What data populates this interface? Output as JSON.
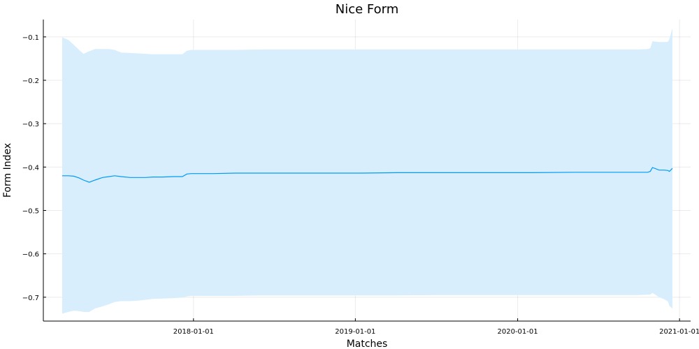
{
  "chart_data": {
    "type": "line",
    "title": "Nice Form",
    "xlabel": "Matches",
    "ylabel": "Form Index",
    "x_ticks": [
      "2018-01-01",
      "2019-01-01",
      "2020-01-01",
      "2021-01-01"
    ],
    "x_tick_days": [
      0,
      365,
      731,
      1096
    ],
    "xlim_days": [
      -296,
      1080
    ],
    "y_ticks": [
      -0.1,
      -0.2,
      -0.3,
      -0.4,
      -0.5,
      -0.6,
      -0.7
    ],
    "ylim": [
      -0.755,
      -0.06
    ],
    "grid": true,
    "legend": "none",
    "series": [
      {
        "name": "form",
        "color": "#009AF9",
        "band_color": "#D8EEFC",
        "x_days": [
          -296,
          -282,
          -270,
          -258,
          -248,
          -235,
          -222,
          -205,
          -190,
          -178,
          -163,
          -143,
          -125,
          -108,
          -92,
          -70,
          -45,
          -25,
          -15,
          -5,
          15,
          45,
          95,
          150,
          220,
          300,
          380,
          460,
          560,
          660,
          760,
          860,
          905,
          935,
          962,
          985,
          1003,
          1024,
          1030,
          1035,
          1050,
          1062,
          1070,
          1073,
          1080
        ],
        "values": [
          -0.42,
          -0.42,
          -0.421,
          -0.425,
          -0.43,
          -0.435,
          -0.43,
          -0.424,
          -0.422,
          -0.42,
          -0.422,
          -0.424,
          -0.424,
          -0.424,
          -0.423,
          -0.423,
          -0.422,
          -0.422,
          -0.416,
          -0.415,
          -0.415,
          -0.415,
          -0.414,
          -0.414,
          -0.414,
          -0.414,
          -0.414,
          -0.413,
          -0.413,
          -0.413,
          -0.413,
          -0.412,
          -0.412,
          -0.412,
          -0.412,
          -0.412,
          -0.412,
          -0.412,
          -0.41,
          -0.401,
          -0.407,
          -0.407,
          -0.408,
          -0.41,
          -0.403
        ],
        "upper": [
          -0.101,
          -0.107,
          -0.118,
          -0.13,
          -0.139,
          -0.133,
          -0.128,
          -0.128,
          -0.128,
          -0.13,
          -0.136,
          -0.137,
          -0.138,
          -0.139,
          -0.14,
          -0.14,
          -0.14,
          -0.14,
          -0.132,
          -0.13,
          -0.13,
          -0.13,
          -0.13,
          -0.129,
          -0.129,
          -0.129,
          -0.129,
          -0.129,
          -0.129,
          -0.129,
          -0.129,
          -0.129,
          -0.129,
          -0.129,
          -0.129,
          -0.129,
          -0.129,
          -0.128,
          -0.126,
          -0.11,
          -0.112,
          -0.112,
          -0.111,
          -0.105,
          -0.08
        ],
        "lower": [
          -0.738,
          -0.734,
          -0.731,
          -0.732,
          -0.734,
          -0.734,
          -0.726,
          -0.721,
          -0.716,
          -0.711,
          -0.709,
          -0.709,
          -0.708,
          -0.706,
          -0.704,
          -0.703,
          -0.702,
          -0.701,
          -0.698,
          -0.697,
          -0.697,
          -0.697,
          -0.697,
          -0.696,
          -0.696,
          -0.696,
          -0.696,
          -0.696,
          -0.695,
          -0.695,
          -0.695,
          -0.695,
          -0.695,
          -0.695,
          -0.695,
          -0.695,
          -0.695,
          -0.694,
          -0.694,
          -0.69,
          -0.7,
          -0.705,
          -0.71,
          -0.72,
          -0.726
        ]
      }
    ]
  }
}
